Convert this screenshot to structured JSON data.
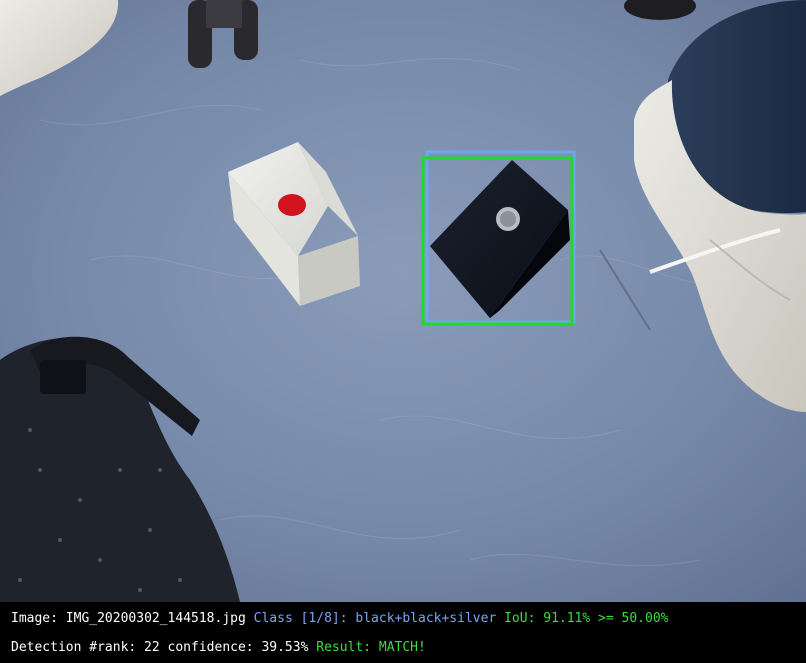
{
  "image_name": "IMG_20200302_144518.jpg",
  "status": {
    "line1": {
      "image_label": "Image: ",
      "image_value": "IMG_20200302_144518.jpg",
      "class_label": " Class [1/8]: ",
      "class_value": "black+black+silver",
      "iou_text": " IoU: 91.11% >= 50.00%"
    },
    "line2": {
      "detection_text": "Detection #rank: 22 confidence: 39.53%",
      "result_text": " Result: MATCH!"
    }
  },
  "colors": {
    "ground_truth_box": "#6fa8ea",
    "detection_box": "#1fdc2a",
    "text_white": "#ffffff",
    "text_class": "#79a6f2",
    "text_green": "#3ddc3d",
    "floor": "#7f92b0"
  },
  "objects": {
    "white_box": "white box with red button",
    "black_box": "black box with silver button"
  }
}
